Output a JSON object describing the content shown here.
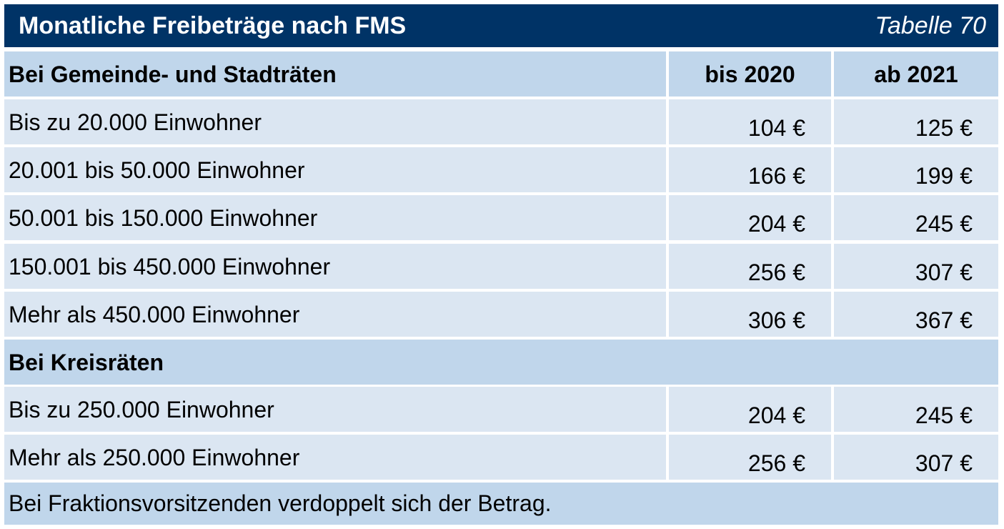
{
  "title": "Monatliche Freibeträge nach FMS",
  "table_number": "Tabelle 70",
  "section_gemeinde": {
    "heading": "Bei Gemeinde- und Stadträten",
    "col_2020": "bis 2020",
    "col_2021": "ab 2021",
    "rows": [
      {
        "label": "Bis zu 20.000 Einwohner",
        "v2020": "104 €",
        "v2021": "125 €"
      },
      {
        "label": "20.001 bis 50.000 Einwohner",
        "v2020": "166 €",
        "v2021": "199 €"
      },
      {
        "label": "50.001 bis 150.000 Einwohner",
        "v2020": "204 €",
        "v2021": "245 €"
      },
      {
        "label": "150.001 bis 450.000 Einwohner",
        "v2020": "256 €",
        "v2021": "307 €"
      },
      {
        "label": "Mehr als 450.000 Einwohner",
        "v2020": "306 €",
        "v2021": "367 €"
      }
    ]
  },
  "section_kreis": {
    "heading": "Bei Kreisräten",
    "rows": [
      {
        "label": "Bis zu 250.000 Einwohner",
        "v2020": "204 €",
        "v2021": "245 €"
      },
      {
        "label": "Mehr als 250.000 Einwohner",
        "v2020": "256 €",
        "v2021": "307 €"
      }
    ]
  },
  "footnote": "Bei Fraktionsvorsitzenden verdoppelt sich der Betrag.",
  "colors": {
    "title_background": "#003366",
    "header_row_background": "#c0d6eb",
    "data_row_background": "#dbe6f2"
  }
}
